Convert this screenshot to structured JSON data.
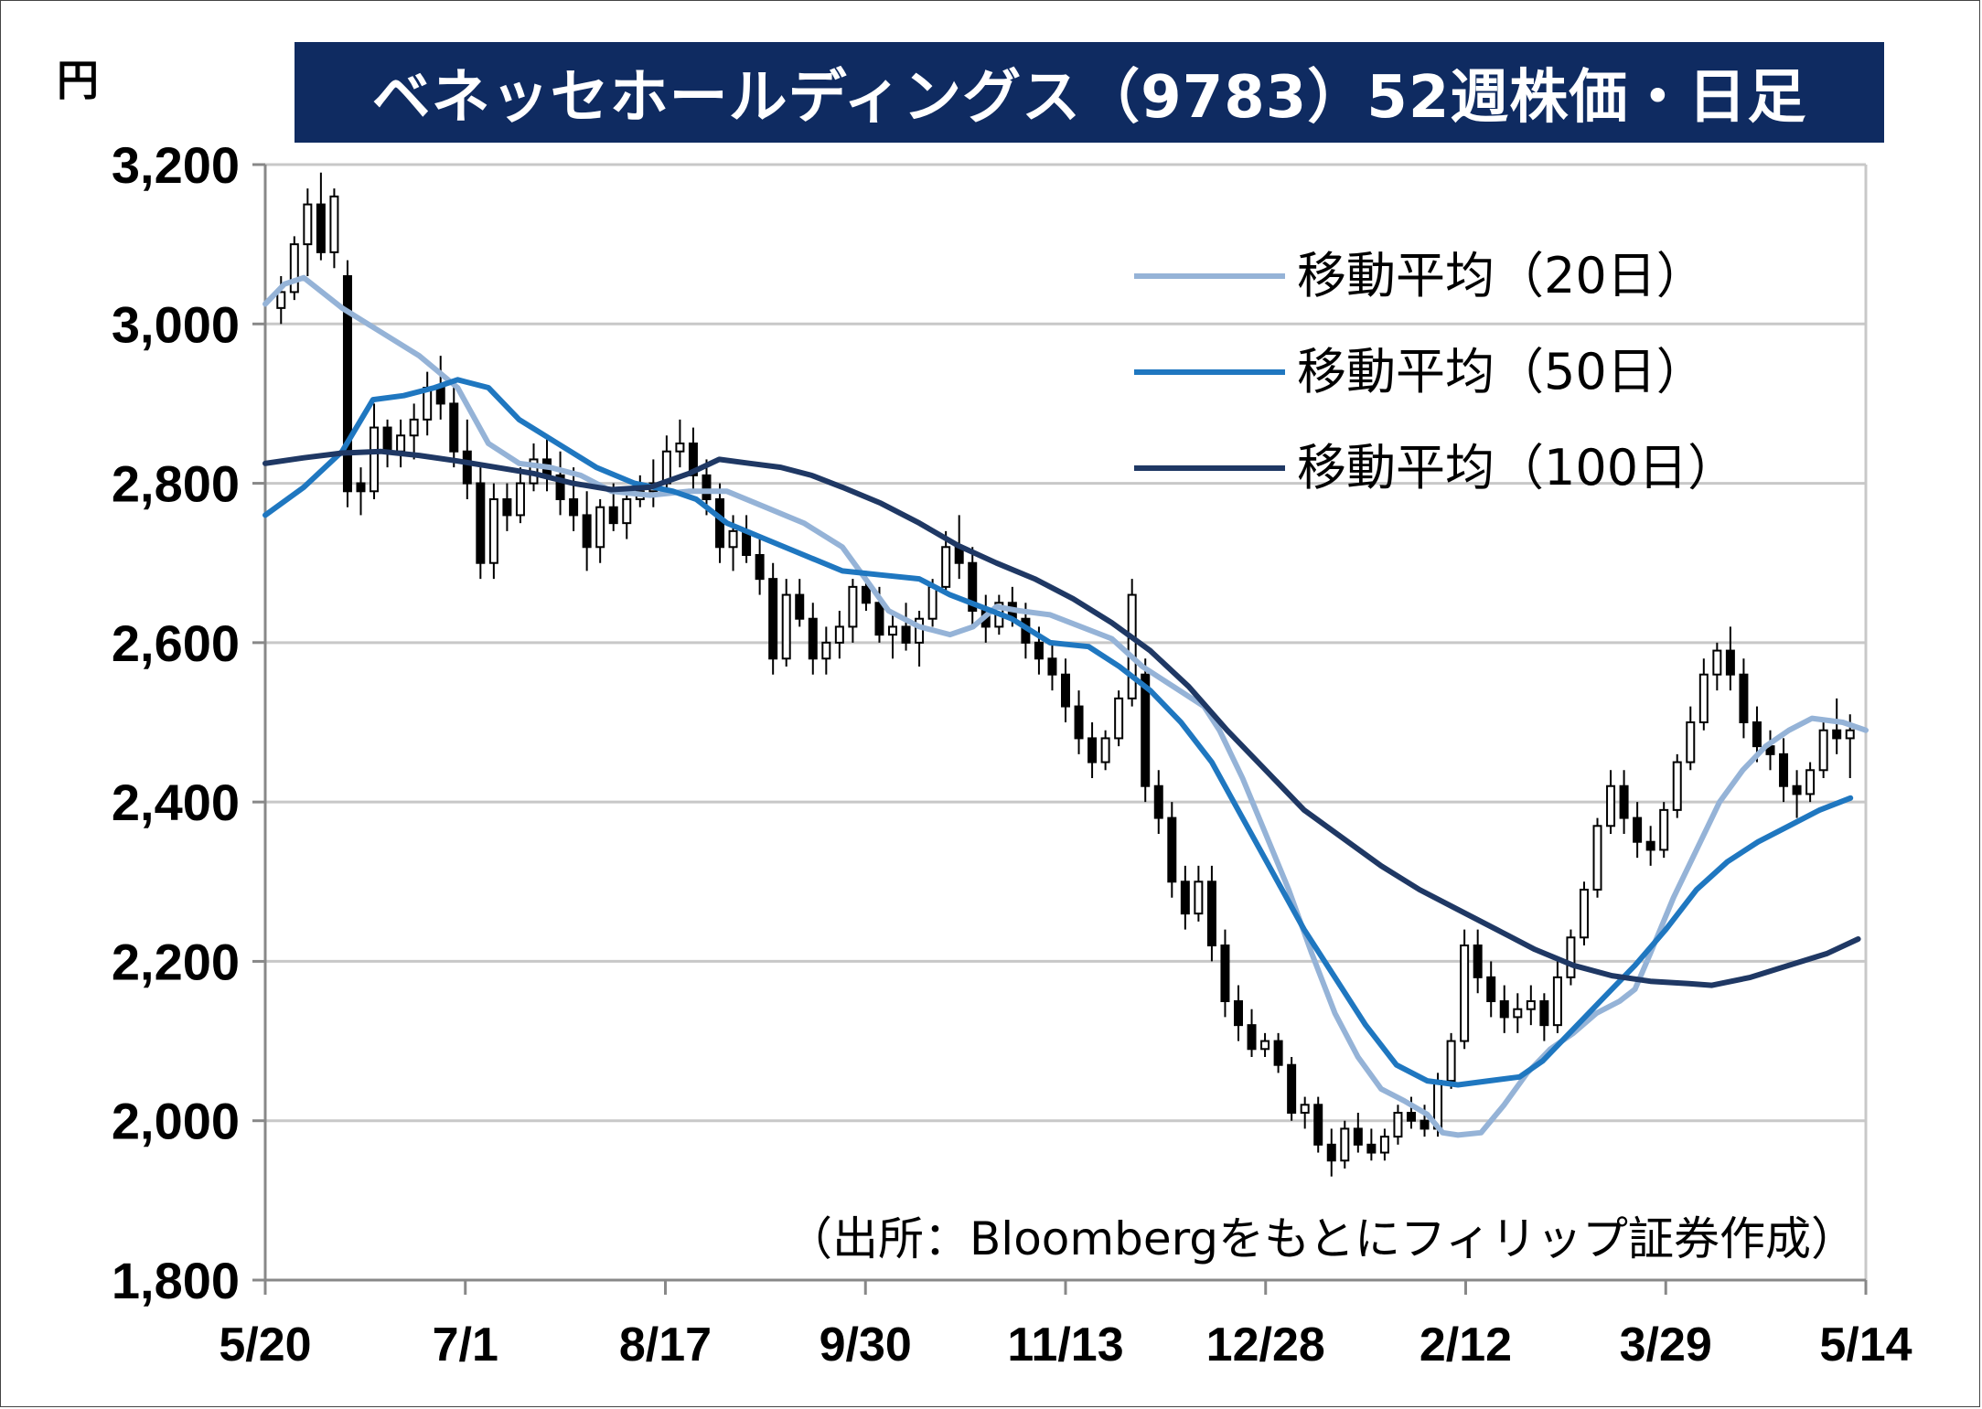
{
  "unit_label": "円",
  "title": "ベネッセホールディングス（9783）52週株価・日足",
  "source_note": "（出所：Bloombergをもとにフィリップ証券作成）",
  "chart_data": {
    "type": "candlestick_with_moving_averages",
    "ylim": [
      1800,
      3200
    ],
    "yticks": [
      "3,200",
      "3,000",
      "2,800",
      "2,600",
      "2,400",
      "2,200",
      "2,000",
      "1,800"
    ],
    "ytick_values": [
      3200,
      3000,
      2800,
      2600,
      2400,
      2200,
      2000,
      1800
    ],
    "xticks": [
      "5/20",
      "7/1",
      "8/17",
      "9/30",
      "11/13",
      "12/28",
      "2/12",
      "3/29",
      "5/14"
    ],
    "grid": "horizontal",
    "legend_position": "top-right",
    "colors": {
      "ma20": "#95b3d7",
      "ma50": "#1f77c0",
      "ma100": "#1f3864",
      "title_bg": "#0f2b61",
      "candle": "#000000"
    },
    "series": [
      {
        "name": "移動平均（20日）",
        "key": "ma20",
        "values": [
          [
            0,
            3025
          ],
          [
            5,
            3050
          ],
          [
            10,
            3058
          ],
          [
            20,
            3020
          ],
          [
            30,
            2990
          ],
          [
            40,
            2960
          ],
          [
            50,
            2920
          ],
          [
            58,
            2850
          ],
          [
            66,
            2825
          ],
          [
            74,
            2820
          ],
          [
            82,
            2810
          ],
          [
            90,
            2790
          ],
          [
            100,
            2785
          ],
          [
            110,
            2790
          ],
          [
            120,
            2790
          ],
          [
            130,
            2770
          ],
          [
            140,
            2750
          ],
          [
            150,
            2720
          ],
          [
            156,
            2680
          ],
          [
            162,
            2640
          ],
          [
            170,
            2620
          ],
          [
            178,
            2610
          ],
          [
            184,
            2620
          ],
          [
            190,
            2645
          ],
          [
            196,
            2640
          ],
          [
            204,
            2635
          ],
          [
            212,
            2620
          ],
          [
            220,
            2605
          ],
          [
            228,
            2570
          ],
          [
            236,
            2545
          ],
          [
            244,
            2520
          ],
          [
            248,
            2490
          ],
          [
            254,
            2430
          ],
          [
            260,
            2360
          ],
          [
            266,
            2290
          ],
          [
            272,
            2210
          ],
          [
            278,
            2135
          ],
          [
            284,
            2080
          ],
          [
            290,
            2040
          ],
          [
            296,
            2025
          ],
          [
            302,
            2008
          ],
          [
            306,
            1985
          ],
          [
            310,
            1982
          ],
          [
            316,
            1985
          ],
          [
            322,
            2020
          ],
          [
            328,
            2060
          ],
          [
            334,
            2090
          ],
          [
            340,
            2110
          ],
          [
            346,
            2135
          ],
          [
            352,
            2150
          ],
          [
            356,
            2165
          ],
          [
            360,
            2210
          ],
          [
            366,
            2280
          ],
          [
            372,
            2340
          ],
          [
            378,
            2400
          ],
          [
            384,
            2440
          ],
          [
            390,
            2470
          ],
          [
            396,
            2490
          ],
          [
            402,
            2505
          ],
          [
            410,
            2500
          ],
          [
            416,
            2490
          ]
        ]
      },
      {
        "name": "移動平均（50日）",
        "key": "ma50",
        "values": [
          [
            0,
            2760
          ],
          [
            10,
            2795
          ],
          [
            20,
            2840
          ],
          [
            28,
            2905
          ],
          [
            36,
            2910
          ],
          [
            44,
            2920
          ],
          [
            50,
            2930
          ],
          [
            58,
            2920
          ],
          [
            66,
            2880
          ],
          [
            76,
            2850
          ],
          [
            86,
            2820
          ],
          [
            96,
            2800
          ],
          [
            106,
            2790
          ],
          [
            112,
            2780
          ],
          [
            120,
            2750
          ],
          [
            130,
            2730
          ],
          [
            140,
            2710
          ],
          [
            150,
            2690
          ],
          [
            160,
            2685
          ],
          [
            170,
            2680
          ],
          [
            178,
            2660
          ],
          [
            186,
            2645
          ],
          [
            194,
            2630
          ],
          [
            204,
            2600
          ],
          [
            214,
            2595
          ],
          [
            222,
            2570
          ],
          [
            230,
            2540
          ],
          [
            238,
            2500
          ],
          [
            246,
            2450
          ],
          [
            254,
            2380
          ],
          [
            262,
            2310
          ],
          [
            270,
            2240
          ],
          [
            278,
            2180
          ],
          [
            286,
            2120
          ],
          [
            294,
            2070
          ],
          [
            302,
            2050
          ],
          [
            310,
            2045
          ],
          [
            318,
            2050
          ],
          [
            326,
            2055
          ],
          [
            332,
            2075
          ],
          [
            340,
            2115
          ],
          [
            348,
            2155
          ],
          [
            356,
            2195
          ],
          [
            364,
            2240
          ],
          [
            372,
            2290
          ],
          [
            380,
            2325
          ],
          [
            388,
            2350
          ],
          [
            396,
            2370
          ],
          [
            404,
            2390
          ],
          [
            412,
            2405
          ]
        ]
      },
      {
        "name": "移動平均（100日）",
        "key": "ma100",
        "values": [
          [
            0,
            2825
          ],
          [
            10,
            2832
          ],
          [
            20,
            2838
          ],
          [
            30,
            2840
          ],
          [
            40,
            2835
          ],
          [
            50,
            2828
          ],
          [
            60,
            2820
          ],
          [
            70,
            2812
          ],
          [
            80,
            2800
          ],
          [
            90,
            2792
          ],
          [
            100,
            2795
          ],
          [
            110,
            2812
          ],
          [
            118,
            2830
          ],
          [
            126,
            2825
          ],
          [
            134,
            2820
          ],
          [
            142,
            2810
          ],
          [
            150,
            2795
          ],
          [
            160,
            2775
          ],
          [
            170,
            2750
          ],
          [
            180,
            2722
          ],
          [
            190,
            2700
          ],
          [
            200,
            2680
          ],
          [
            210,
            2655
          ],
          [
            220,
            2625
          ],
          [
            230,
            2590
          ],
          [
            240,
            2545
          ],
          [
            250,
            2490
          ],
          [
            260,
            2440
          ],
          [
            270,
            2390
          ],
          [
            280,
            2355
          ],
          [
            290,
            2320
          ],
          [
            300,
            2290
          ],
          [
            310,
            2265
          ],
          [
            320,
            2240
          ],
          [
            330,
            2215
          ],
          [
            340,
            2195
          ],
          [
            350,
            2182
          ],
          [
            360,
            2175
          ],
          [
            370,
            2172
          ],
          [
            376,
            2170
          ],
          [
            386,
            2180
          ],
          [
            396,
            2195
          ],
          [
            406,
            2210
          ],
          [
            414,
            2228
          ]
        ]
      }
    ],
    "candles": [
      [
        3020,
        3060,
        3000,
        3040
      ],
      [
        3040,
        3110,
        3030,
        3100
      ],
      [
        3100,
        3170,
        3060,
        3150
      ],
      [
        3150,
        3190,
        3080,
        3090
      ],
      [
        3090,
        3170,
        3070,
        3160
      ],
      [
        3060,
        3080,
        2770,
        2790
      ],
      [
        2800,
        2820,
        2760,
        2790
      ],
      [
        2790,
        2900,
        2780,
        2870
      ],
      [
        2870,
        2880,
        2820,
        2840
      ],
      [
        2840,
        2880,
        2820,
        2860
      ],
      [
        2860,
        2900,
        2830,
        2880
      ],
      [
        2880,
        2940,
        2860,
        2920
      ],
      [
        2920,
        2960,
        2880,
        2900
      ],
      [
        2900,
        2930,
        2820,
        2840
      ],
      [
        2840,
        2880,
        2780,
        2800
      ],
      [
        2800,
        2820,
        2680,
        2700
      ],
      [
        2700,
        2800,
        2680,
        2780
      ],
      [
        2780,
        2800,
        2740,
        2760
      ],
      [
        2760,
        2820,
        2750,
        2800
      ],
      [
        2800,
        2850,
        2790,
        2830
      ],
      [
        2830,
        2860,
        2790,
        2810
      ],
      [
        2810,
        2840,
        2760,
        2780
      ],
      [
        2780,
        2820,
        2740,
        2760
      ],
      [
        2760,
        2790,
        2690,
        2720
      ],
      [
        2720,
        2780,
        2700,
        2770
      ],
      [
        2770,
        2800,
        2740,
        2750
      ],
      [
        2750,
        2790,
        2730,
        2780
      ],
      [
        2780,
        2810,
        2770,
        2790
      ],
      [
        2790,
        2830,
        2770,
        2800
      ],
      [
        2800,
        2860,
        2790,
        2840
      ],
      [
        2840,
        2880,
        2820,
        2850
      ],
      [
        2850,
        2870,
        2790,
        2810
      ],
      [
        2810,
        2830,
        2760,
        2780
      ],
      [
        2780,
        2800,
        2700,
        2720
      ],
      [
        2720,
        2760,
        2690,
        2740
      ],
      [
        2740,
        2760,
        2700,
        2710
      ],
      [
        2710,
        2730,
        2660,
        2680
      ],
      [
        2680,
        2700,
        2560,
        2580
      ],
      [
        2580,
        2680,
        2570,
        2660
      ],
      [
        2660,
        2680,
        2620,
        2630
      ],
      [
        2630,
        2650,
        2560,
        2580
      ],
      [
        2580,
        2620,
        2560,
        2600
      ],
      [
        2600,
        2640,
        2580,
        2620
      ],
      [
        2620,
        2680,
        2600,
        2670
      ],
      [
        2670,
        2690,
        2640,
        2650
      ],
      [
        2650,
        2670,
        2600,
        2610
      ],
      [
        2610,
        2640,
        2580,
        2620
      ],
      [
        2620,
        2650,
        2590,
        2600
      ],
      [
        2600,
        2640,
        2570,
        2630
      ],
      [
        2630,
        2680,
        2620,
        2670
      ],
      [
        2670,
        2740,
        2660,
        2720
      ],
      [
        2720,
        2760,
        2680,
        2700
      ],
      [
        2700,
        2720,
        2620,
        2640
      ],
      [
        2640,
        2660,
        2600,
        2620
      ],
      [
        2620,
        2660,
        2610,
        2650
      ],
      [
        2650,
        2670,
        2620,
        2630
      ],
      [
        2630,
        2650,
        2580,
        2600
      ],
      [
        2600,
        2620,
        2560,
        2580
      ],
      [
        2580,
        2600,
        2540,
        2560
      ],
      [
        2560,
        2580,
        2500,
        2520
      ],
      [
        2520,
        2540,
        2460,
        2480
      ],
      [
        2480,
        2500,
        2430,
        2450
      ],
      [
        2450,
        2490,
        2440,
        2480
      ],
      [
        2480,
        2540,
        2470,
        2530
      ],
      [
        2530,
        2680,
        2520,
        2660
      ],
      [
        2560,
        2580,
        2400,
        2420
      ],
      [
        2420,
        2440,
        2360,
        2380
      ],
      [
        2380,
        2400,
        2280,
        2300
      ],
      [
        2300,
        2320,
        2240,
        2260
      ],
      [
        2260,
        2320,
        2250,
        2300
      ],
      [
        2300,
        2320,
        2200,
        2220
      ],
      [
        2220,
        2240,
        2130,
        2150
      ],
      [
        2150,
        2170,
        2100,
        2120
      ],
      [
        2120,
        2140,
        2080,
        2090
      ],
      [
        2090,
        2110,
        2080,
        2100
      ],
      [
        2100,
        2110,
        2060,
        2070
      ],
      [
        2070,
        2080,
        2000,
        2010
      ],
      [
        2010,
        2030,
        1990,
        2020
      ],
      [
        2020,
        2030,
        1960,
        1970
      ],
      [
        1970,
        1990,
        1930,
        1950
      ],
      [
        1950,
        2000,
        1940,
        1990
      ],
      [
        1990,
        2010,
        1960,
        1970
      ],
      [
        1970,
        1990,
        1950,
        1960
      ],
      [
        1960,
        1990,
        1950,
        1980
      ],
      [
        1980,
        2020,
        1970,
        2010
      ],
      [
        2010,
        2030,
        1990,
        2000
      ],
      [
        2000,
        2020,
        1980,
        1990
      ],
      [
        1990,
        2060,
        1980,
        2050
      ],
      [
        2050,
        2110,
        2040,
        2100
      ],
      [
        2100,
        2240,
        2090,
        2220
      ],
      [
        2220,
        2240,
        2160,
        2180
      ],
      [
        2180,
        2200,
        2130,
        2150
      ],
      [
        2150,
        2170,
        2110,
        2130
      ],
      [
        2130,
        2160,
        2110,
        2140
      ],
      [
        2140,
        2170,
        2120,
        2150
      ],
      [
        2150,
        2160,
        2100,
        2120
      ],
      [
        2120,
        2200,
        2110,
        2180
      ],
      [
        2180,
        2240,
        2170,
        2230
      ],
      [
        2230,
        2300,
        2220,
        2290
      ],
      [
        2290,
        2380,
        2280,
        2370
      ],
      [
        2370,
        2440,
        2360,
        2420
      ],
      [
        2420,
        2440,
        2360,
        2380
      ],
      [
        2380,
        2400,
        2330,
        2350
      ],
      [
        2350,
        2370,
        2320,
        2340
      ],
      [
        2340,
        2400,
        2330,
        2390
      ],
      [
        2390,
        2460,
        2380,
        2450
      ],
      [
        2450,
        2520,
        2440,
        2500
      ],
      [
        2500,
        2580,
        2490,
        2560
      ],
      [
        2560,
        2600,
        2540,
        2590
      ],
      [
        2590,
        2620,
        2540,
        2560
      ],
      [
        2560,
        2580,
        2480,
        2500
      ],
      [
        2500,
        2520,
        2450,
        2470
      ],
      [
        2470,
        2490,
        2440,
        2460
      ],
      [
        2460,
        2480,
        2400,
        2420
      ],
      [
        2420,
        2440,
        2380,
        2410
      ],
      [
        2410,
        2450,
        2400,
        2440
      ],
      [
        2440,
        2500,
        2430,
        2490
      ],
      [
        2490,
        2530,
        2460,
        2480
      ],
      [
        2480,
        2510,
        2430,
        2490
      ]
    ]
  },
  "legend": [
    {
      "label": "移動平均（20日）",
      "color": "#95b3d7"
    },
    {
      "label": "移動平均（50日）",
      "color": "#1f77c0"
    },
    {
      "label": "移動平均（100日）",
      "color": "#1f3864"
    }
  ]
}
